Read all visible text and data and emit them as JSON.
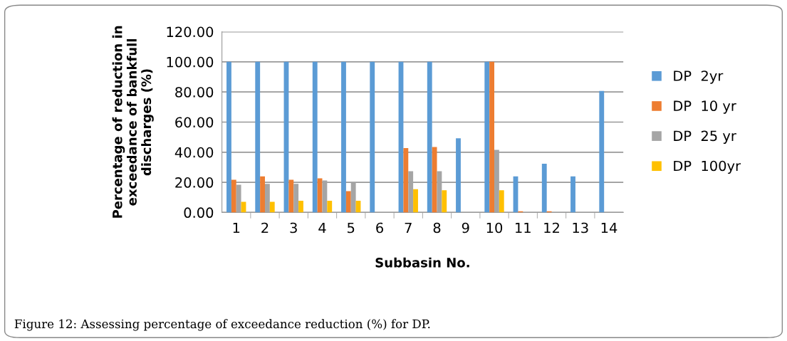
{
  "chart_data": {
    "type": "bar",
    "xlabel": "Subbasin No.",
    "ylabel": "Percentage of reduction in exceedance of bankfull discharges (%)",
    "categories": [
      "1",
      "2",
      "3",
      "4",
      "5",
      "6",
      "7",
      "8",
      "9",
      "10",
      "11",
      "12",
      "13",
      "14"
    ],
    "series": [
      {
        "name": "DP  2yr",
        "color": "#5b9bd5",
        "values": [
          100,
          100,
          100,
          100,
          100,
          100,
          100,
          100,
          49.2,
          100,
          23.9,
          32.3,
          23.9,
          80.7
        ]
      },
      {
        "name": "DP  10 yr",
        "color": "#ed7d31",
        "values": [
          21.7,
          23.9,
          21.7,
          22.6,
          14.1,
          0,
          42.7,
          43.5,
          0,
          100,
          0.8,
          0.8,
          0,
          0
        ]
      },
      {
        "name": "DP  25 yr",
        "color": "#a5a5a5",
        "values": [
          18.4,
          19.0,
          19.0,
          21.2,
          19.9,
          0,
          27.4,
          27.4,
          0,
          41.5,
          0,
          0,
          0,
          0
        ]
      },
      {
        "name": "DP  100yr",
        "color": "#ffc000",
        "values": [
          7.0,
          7.0,
          7.8,
          7.8,
          7.8,
          0,
          15.5,
          14.7,
          0,
          14.7,
          0,
          0,
          0,
          0
        ]
      }
    ],
    "ylim": [
      0,
      120
    ],
    "yticks": [
      {
        "value": 0,
        "label": "0.00"
      },
      {
        "value": 20,
        "label": "20.00"
      },
      {
        "value": 40,
        "label": "40.00"
      },
      {
        "value": 60,
        "label": "60.00"
      },
      {
        "value": 80,
        "label": "80.00"
      },
      {
        "value": 100,
        "label": "100.00"
      },
      {
        "value": 120,
        "label": "120.00"
      }
    ],
    "grid": "y",
    "legend": "right",
    "annotations": [
      "Figure 12: Assessing percentage of exceedance reduction (%) for DP."
    ]
  }
}
